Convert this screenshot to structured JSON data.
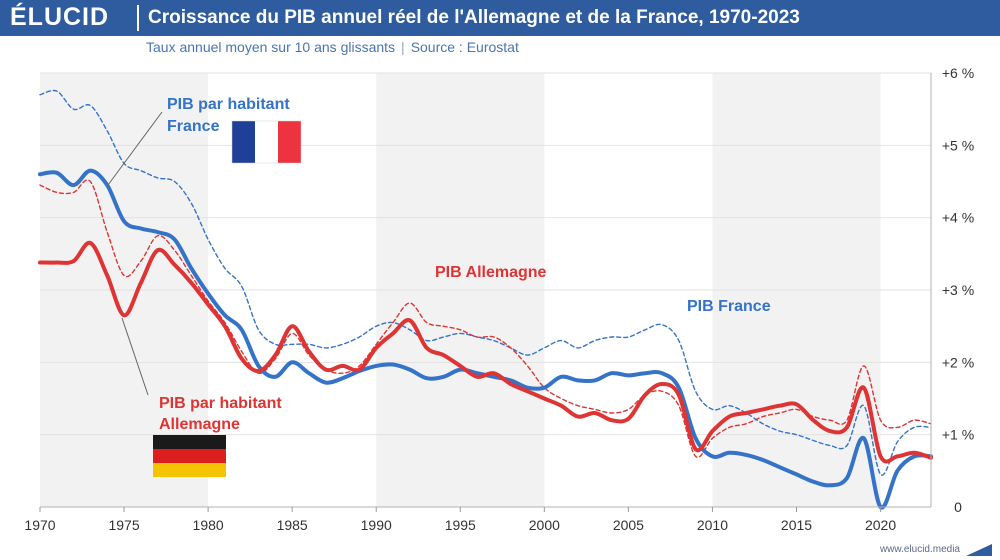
{
  "brand": {
    "logo": "ÉLUCID",
    "website": "www.elucid.media"
  },
  "header": {
    "title": "Croissance du PIB annuel réel de l'Allemagne et de la France, 1970-2023",
    "subtitle": "Taux annuel moyen sur 10 ans glissants",
    "source": "Source : Eurostat"
  },
  "colors": {
    "france": "#3473c8",
    "germany": "#de3434",
    "header_bg": "#2f5c9e",
    "band": "#f2f2f2"
  },
  "chart_data": {
    "type": "line",
    "x_ticks": [
      "1970",
      "1975",
      "1980",
      "1985",
      "1990",
      "1995",
      "2000",
      "2005",
      "2010",
      "2015",
      "2020"
    ],
    "y_ticks": [
      "0",
      "+1 %",
      "+2 %",
      "+3 %",
      "+4 %",
      "+5 %",
      "+6 %"
    ],
    "xlim": [
      1970,
      2023
    ],
    "ylim": [
      0,
      6
    ],
    "grid": true,
    "annotations": {
      "france_pc": [
        "PIB par habitant",
        "France"
      ],
      "germany": "PIB Allemagne",
      "france": "PIB France",
      "germany_pc": [
        "PIB par habitant",
        "Allemagne"
      ]
    },
    "series": [
      {
        "name": "PIB France",
        "key": "france",
        "style": "dashed",
        "points": [
          [
            1970,
            5.7
          ],
          [
            1971,
            5.75
          ],
          [
            1972,
            5.5
          ],
          [
            1973,
            5.55
          ],
          [
            1974,
            5.2
          ],
          [
            1975,
            4.75
          ],
          [
            1976,
            4.65
          ],
          [
            1977,
            4.55
          ],
          [
            1978,
            4.5
          ],
          [
            1979,
            4.2
          ],
          [
            1980,
            3.7
          ],
          [
            1981,
            3.3
          ],
          [
            1982,
            3.05
          ],
          [
            1983,
            2.45
          ],
          [
            1984,
            2.25
          ],
          [
            1985,
            2.25
          ],
          [
            1986,
            2.25
          ],
          [
            1987,
            2.2
          ],
          [
            1988,
            2.25
          ],
          [
            1989,
            2.35
          ],
          [
            1990,
            2.5
          ],
          [
            1991,
            2.55
          ],
          [
            1992,
            2.45
          ],
          [
            1993,
            2.3
          ],
          [
            1994,
            2.35
          ],
          [
            1995,
            2.4
          ],
          [
            1996,
            2.35
          ],
          [
            1997,
            2.3
          ],
          [
            1998,
            2.2
          ],
          [
            1999,
            2.1
          ],
          [
            2000,
            2.2
          ],
          [
            2001,
            2.3
          ],
          [
            2002,
            2.2
          ],
          [
            2003,
            2.3
          ],
          [
            2004,
            2.35
          ],
          [
            2005,
            2.35
          ],
          [
            2006,
            2.45
          ],
          [
            2007,
            2.52
          ],
          [
            2008,
            2.3
          ],
          [
            2009,
            1.6
          ],
          [
            2010,
            1.35
          ],
          [
            2011,
            1.4
          ],
          [
            2012,
            1.3
          ],
          [
            2013,
            1.15
          ],
          [
            2014,
            1.05
          ],
          [
            2015,
            1.0
          ],
          [
            2016,
            0.92
          ],
          [
            2017,
            0.85
          ],
          [
            2018,
            0.85
          ],
          [
            2019,
            1.4
          ],
          [
            2020,
            0.45
          ],
          [
            2021,
            0.9
          ],
          [
            2022,
            1.1
          ],
          [
            2023,
            1.1
          ]
        ]
      },
      {
        "name": "PIB Allemagne",
        "key": "germany",
        "style": "dashed",
        "points": [
          [
            1970,
            4.45
          ],
          [
            1971,
            4.35
          ],
          [
            1972,
            4.35
          ],
          [
            1973,
            4.5
          ],
          [
            1974,
            3.8
          ],
          [
            1975,
            3.2
          ],
          [
            1976,
            3.4
          ],
          [
            1977,
            3.75
          ],
          [
            1978,
            3.55
          ],
          [
            1979,
            3.2
          ],
          [
            1980,
            2.85
          ],
          [
            1981,
            2.55
          ],
          [
            1982,
            2.15
          ],
          [
            1983,
            1.85
          ],
          [
            1984,
            2.05
          ],
          [
            1985,
            2.4
          ],
          [
            1986,
            2.1
          ],
          [
            1987,
            1.9
          ],
          [
            1988,
            1.85
          ],
          [
            1989,
            1.95
          ],
          [
            1990,
            2.25
          ],
          [
            1991,
            2.55
          ],
          [
            1992,
            2.82
          ],
          [
            1993,
            2.55
          ],
          [
            1994,
            2.5
          ],
          [
            1995,
            2.45
          ],
          [
            1996,
            2.35
          ],
          [
            1997,
            2.35
          ],
          [
            1998,
            2.2
          ],
          [
            1999,
            1.95
          ],
          [
            2000,
            1.65
          ],
          [
            2001,
            1.5
          ],
          [
            2002,
            1.4
          ],
          [
            2003,
            1.35
          ],
          [
            2004,
            1.3
          ],
          [
            2005,
            1.35
          ],
          [
            2006,
            1.55
          ],
          [
            2007,
            1.6
          ],
          [
            2008,
            1.4
          ],
          [
            2009,
            0.7
          ],
          [
            2010,
            0.95
          ],
          [
            2011,
            1.1
          ],
          [
            2012,
            1.15
          ],
          [
            2013,
            1.25
          ],
          [
            2014,
            1.3
          ],
          [
            2015,
            1.35
          ],
          [
            2016,
            1.25
          ],
          [
            2017,
            1.2
          ],
          [
            2018,
            1.2
          ],
          [
            2019,
            1.95
          ],
          [
            2020,
            1.2
          ],
          [
            2021,
            1.1
          ],
          [
            2022,
            1.2
          ],
          [
            2023,
            1.15
          ]
        ]
      },
      {
        "name": "PIB par habitant France",
        "key": "france",
        "style": "solid",
        "points": [
          [
            1970,
            4.6
          ],
          [
            1971,
            4.62
          ],
          [
            1972,
            4.45
          ],
          [
            1973,
            4.65
          ],
          [
            1974,
            4.45
          ],
          [
            1975,
            3.95
          ],
          [
            1976,
            3.85
          ],
          [
            1977,
            3.8
          ],
          [
            1978,
            3.7
          ],
          [
            1979,
            3.3
          ],
          [
            1980,
            2.95
          ],
          [
            1981,
            2.65
          ],
          [
            1982,
            2.45
          ],
          [
            1983,
            1.95
          ],
          [
            1984,
            1.8
          ],
          [
            1985,
            2.0
          ],
          [
            1986,
            1.85
          ],
          [
            1987,
            1.72
          ],
          [
            1988,
            1.78
          ],
          [
            1989,
            1.88
          ],
          [
            1990,
            1.95
          ],
          [
            1991,
            1.97
          ],
          [
            1992,
            1.9
          ],
          [
            1993,
            1.78
          ],
          [
            1994,
            1.8
          ],
          [
            1995,
            1.9
          ],
          [
            1996,
            1.85
          ],
          [
            1997,
            1.8
          ],
          [
            1998,
            1.75
          ],
          [
            1999,
            1.65
          ],
          [
            2000,
            1.65
          ],
          [
            2001,
            1.8
          ],
          [
            2002,
            1.75
          ],
          [
            2003,
            1.75
          ],
          [
            2004,
            1.85
          ],
          [
            2005,
            1.82
          ],
          [
            2006,
            1.85
          ],
          [
            2007,
            1.85
          ],
          [
            2008,
            1.65
          ],
          [
            2009,
            0.95
          ],
          [
            2010,
            0.7
          ],
          [
            2011,
            0.75
          ],
          [
            2012,
            0.72
          ],
          [
            2013,
            0.65
          ],
          [
            2014,
            0.55
          ],
          [
            2015,
            0.45
          ],
          [
            2016,
            0.35
          ],
          [
            2017,
            0.3
          ],
          [
            2018,
            0.4
          ],
          [
            2019,
            0.95
          ],
          [
            2020,
            0.0
          ],
          [
            2021,
            0.5
          ],
          [
            2022,
            0.7
          ],
          [
            2023,
            0.7
          ]
        ]
      },
      {
        "name": "PIB par habitant Allemagne",
        "key": "germany",
        "style": "solid",
        "points": [
          [
            1970,
            3.38
          ],
          [
            1971,
            3.38
          ],
          [
            1972,
            3.4
          ],
          [
            1973,
            3.65
          ],
          [
            1974,
            3.2
          ],
          [
            1975,
            2.65
          ],
          [
            1976,
            3.1
          ],
          [
            1977,
            3.55
          ],
          [
            1978,
            3.35
          ],
          [
            1979,
            3.1
          ],
          [
            1980,
            2.8
          ],
          [
            1981,
            2.5
          ],
          [
            1982,
            2.05
          ],
          [
            1983,
            1.88
          ],
          [
            1984,
            2.1
          ],
          [
            1985,
            2.5
          ],
          [
            1986,
            2.15
          ],
          [
            1987,
            1.9
          ],
          [
            1988,
            1.95
          ],
          [
            1989,
            1.9
          ],
          [
            1990,
            2.2
          ],
          [
            1991,
            2.4
          ],
          [
            1992,
            2.58
          ],
          [
            1993,
            2.2
          ],
          [
            1994,
            2.1
          ],
          [
            1995,
            1.95
          ],
          [
            1996,
            1.8
          ],
          [
            1997,
            1.85
          ],
          [
            1998,
            1.7
          ],
          [
            1999,
            1.6
          ],
          [
            2000,
            1.5
          ],
          [
            2001,
            1.4
          ],
          [
            2002,
            1.25
          ],
          [
            2003,
            1.3
          ],
          [
            2004,
            1.2
          ],
          [
            2005,
            1.22
          ],
          [
            2006,
            1.55
          ],
          [
            2007,
            1.7
          ],
          [
            2008,
            1.55
          ],
          [
            2009,
            0.8
          ],
          [
            2010,
            1.05
          ],
          [
            2011,
            1.25
          ],
          [
            2012,
            1.3
          ],
          [
            2013,
            1.35
          ],
          [
            2014,
            1.4
          ],
          [
            2015,
            1.42
          ],
          [
            2016,
            1.2
          ],
          [
            2017,
            1.05
          ],
          [
            2018,
            1.1
          ],
          [
            2019,
            1.65
          ],
          [
            2020,
            0.7
          ],
          [
            2021,
            0.7
          ],
          [
            2022,
            0.75
          ],
          [
            2023,
            0.68
          ]
        ]
      }
    ]
  }
}
